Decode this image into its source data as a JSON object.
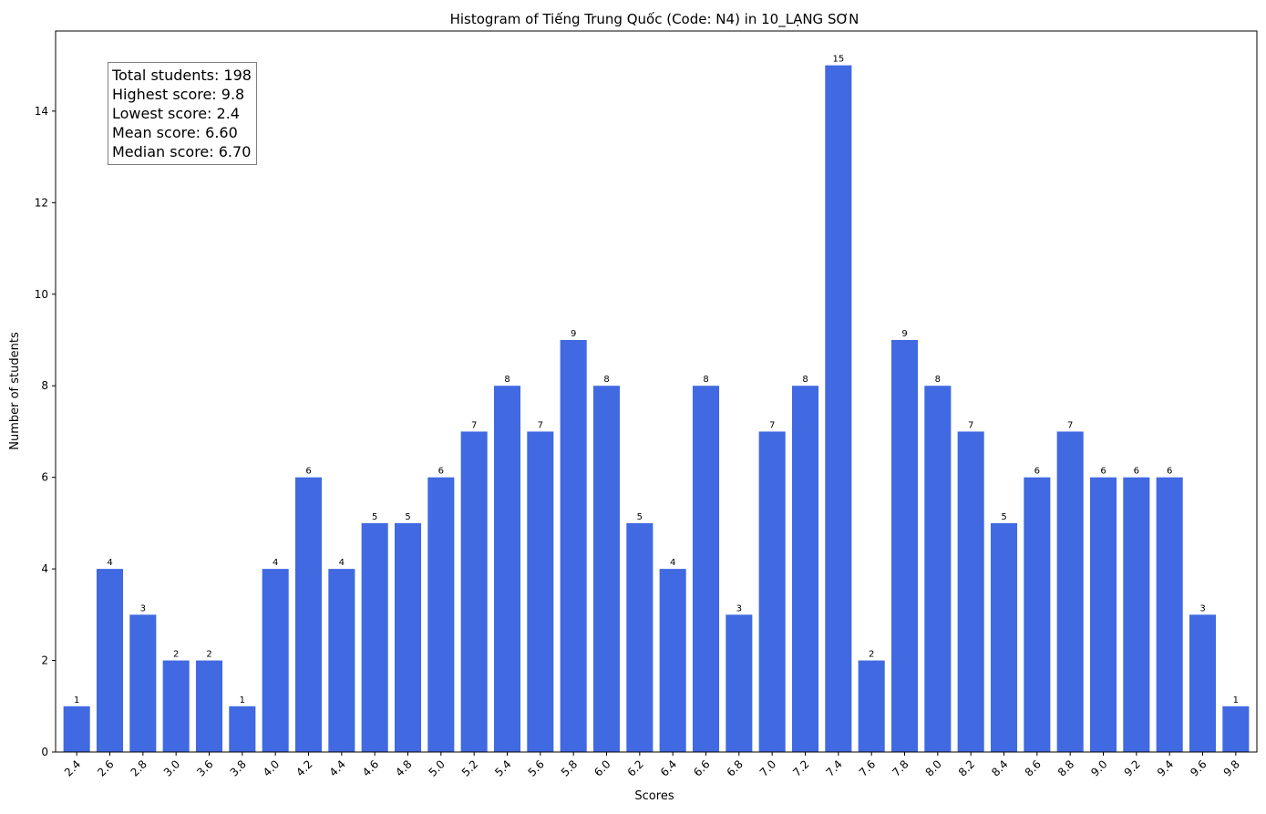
{
  "chart_data": {
    "type": "bar",
    "title": "Histogram of Tiếng Trung Quốc (Code: N4) in 10_LẠNG SƠN",
    "xlabel": "Scores",
    "ylabel": "Number of students",
    "ylim": [
      0,
      15.75
    ],
    "yticks": [
      0,
      2,
      4,
      6,
      8,
      10,
      12,
      14
    ],
    "categories": [
      "2.4",
      "2.6",
      "2.8",
      "3.0",
      "3.6",
      "3.8",
      "4.0",
      "4.2",
      "4.4",
      "4.6",
      "4.8",
      "5.0",
      "5.2",
      "5.4",
      "5.6",
      "5.8",
      "6.0",
      "6.2",
      "6.4",
      "6.6",
      "6.8",
      "7.0",
      "7.2",
      "7.4",
      "7.6",
      "7.8",
      "8.0",
      "8.2",
      "8.4",
      "8.6",
      "8.8",
      "9.0",
      "9.2",
      "9.4",
      "9.6",
      "9.8"
    ],
    "values": [
      1,
      4,
      3,
      2,
      2,
      1,
      4,
      6,
      4,
      5,
      5,
      6,
      7,
      8,
      7,
      9,
      8,
      5,
      4,
      8,
      3,
      7,
      8,
      15,
      2,
      9,
      8,
      7,
      5,
      6,
      7,
      6,
      6,
      6,
      3,
      1
    ],
    "bar_color": "#4169e1",
    "grid": false,
    "data_labels": true
  },
  "stats": {
    "total": "Total students: 198",
    "highest": "Highest score: 9.8",
    "lowest": "Lowest score: 2.4",
    "mean": "Mean score: 6.60",
    "median": "Median score: 6.70"
  }
}
